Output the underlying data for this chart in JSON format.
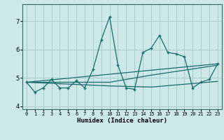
{
  "xlabel": "Humidex (Indice chaleur)",
  "background_color": "#cce8e8",
  "grid_color": "#aacccc",
  "line_color": "#1a6b6b",
  "xlim": [
    -0.5,
    23.5
  ],
  "ylim": [
    3.9,
    7.6
  ],
  "yticks": [
    4,
    5,
    6,
    7
  ],
  "xticks": [
    0,
    1,
    2,
    3,
    4,
    5,
    6,
    7,
    8,
    9,
    10,
    11,
    12,
    13,
    14,
    15,
    16,
    17,
    18,
    19,
    20,
    21,
    22,
    23
  ],
  "series1_x": [
    0,
    1,
    2,
    3,
    4,
    5,
    6,
    7,
    8,
    9,
    10,
    11,
    12,
    13,
    14,
    15,
    16,
    17,
    18,
    19,
    20,
    21,
    22,
    23
  ],
  "series1_y": [
    4.85,
    4.5,
    4.65,
    4.95,
    4.65,
    4.65,
    4.9,
    4.65,
    5.3,
    6.35,
    7.15,
    5.45,
    4.65,
    4.6,
    5.9,
    6.05,
    6.5,
    5.9,
    5.85,
    5.75,
    4.65,
    4.85,
    4.95,
    5.5
  ],
  "series2_x": [
    0,
    23
  ],
  "series2_y": [
    4.85,
    5.5
  ],
  "series3_x": [
    0,
    10,
    15,
    23
  ],
  "series3_y": [
    4.85,
    4.85,
    5.1,
    5.45
  ],
  "series4_x": [
    0,
    10,
    15,
    23
  ],
  "series4_y": [
    4.85,
    4.72,
    4.68,
    4.88
  ]
}
